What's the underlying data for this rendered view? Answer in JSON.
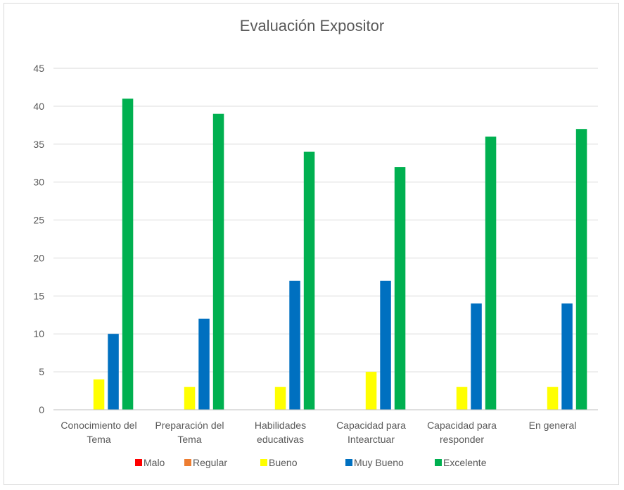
{
  "chart_data": {
    "type": "bar",
    "title": "Evaluación Expositor",
    "xlabel": "",
    "ylabel": "",
    "ylim": [
      0,
      45
    ],
    "yticks": [
      0,
      5,
      10,
      15,
      20,
      25,
      30,
      35,
      40,
      45
    ],
    "grid": true,
    "legend_position": "bottom",
    "categories": [
      [
        "Conocimiento del",
        "Tema"
      ],
      [
        "Preparación del",
        "Tema"
      ],
      [
        "Habilidades",
        "educativas"
      ],
      [
        "Capacidad para",
        "Intearctuar"
      ],
      [
        "Capacidad para",
        "responder"
      ],
      [
        "En general"
      ]
    ],
    "series": [
      {
        "name": "Malo",
        "color": "#ff0000",
        "values": [
          0,
          0,
          0,
          0,
          0,
          0
        ]
      },
      {
        "name": "Regular",
        "color": "#ed7d31",
        "values": [
          0,
          0,
          0,
          0,
          0,
          0
        ]
      },
      {
        "name": "Bueno",
        "color": "#ffff00",
        "values": [
          4,
          3,
          3,
          5,
          3,
          3
        ]
      },
      {
        "name": "Muy Bueno",
        "color": "#0070c0",
        "values": [
          10,
          12,
          17,
          17,
          14,
          14
        ]
      },
      {
        "name": "Excelente",
        "color": "#00b050",
        "values": [
          41,
          39,
          34,
          32,
          36,
          37
        ]
      }
    ]
  }
}
